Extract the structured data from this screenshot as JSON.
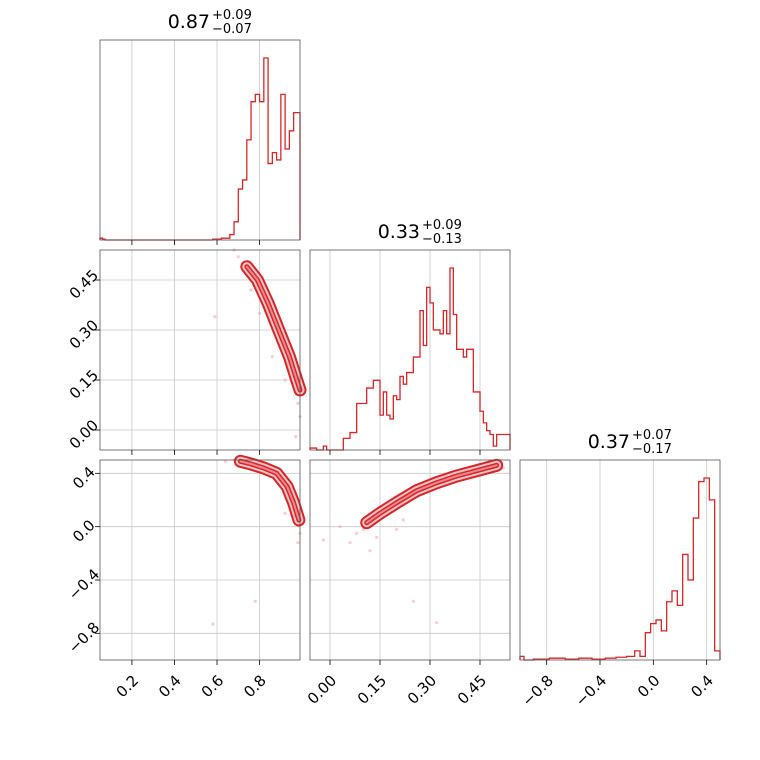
{
  "colors": {
    "accent": "#d62728",
    "contour_fill_light": "#f6c4c7",
    "contour_fill_mid": "#ea8a90",
    "scatter": "#f0a0a8",
    "grid": "#c8c8c8"
  },
  "chart_data": {
    "type": "corner",
    "grid": true,
    "parameters": [
      {
        "title_main": "0.87",
        "title_plus": "+0.09",
        "title_minus": "−0.07",
        "range": [
          0.05,
          0.99
        ],
        "ticks": [
          "0.2",
          "0.4",
          "0.6",
          "0.8"
        ],
        "tick_values": [
          0.2,
          0.4,
          0.6,
          0.8
        ],
        "hist": {
          "edges": [
            0.05,
            0.062,
            0.074,
            0.58,
            0.62,
            0.66,
            0.68,
            0.7,
            0.72,
            0.74,
            0.76,
            0.78,
            0.8,
            0.82,
            0.84,
            0.86,
            0.88,
            0.9,
            0.92,
            0.94,
            0.96,
            0.98,
            0.99
          ],
          "counts": [
            0.01,
            0.005,
            0,
            0.005,
            0.01,
            0.03,
            0.1,
            0.28,
            0.33,
            0.55,
            0.76,
            0.8,
            0.76,
            1.0,
            0.42,
            0.48,
            0.44,
            0.8,
            0.5,
            0.6,
            0.7,
            0.7
          ]
        }
      },
      {
        "title_main": "0.33",
        "title_plus": "+0.09",
        "title_minus": "−0.13",
        "range": [
          -0.06,
          0.54
        ],
        "ticks": [
          "0.00",
          "0.15",
          "0.30",
          "0.45"
        ],
        "tick_values": [
          0.0,
          0.15,
          0.3,
          0.45
        ],
        "hist": {
          "edges": [
            -0.06,
            -0.04,
            -0.02,
            -0.01,
            0.0,
            0.02,
            0.04,
            0.06,
            0.08,
            0.1,
            0.11,
            0.12,
            0.13,
            0.14,
            0.15,
            0.16,
            0.17,
            0.18,
            0.19,
            0.2,
            0.21,
            0.22,
            0.23,
            0.24,
            0.25,
            0.26,
            0.27,
            0.28,
            0.29,
            0.3,
            0.31,
            0.32,
            0.33,
            0.34,
            0.35,
            0.36,
            0.37,
            0.38,
            0.39,
            0.4,
            0.41,
            0.42,
            0.43,
            0.44,
            0.45,
            0.46,
            0.47,
            0.48,
            0.49,
            0.5,
            0.52,
            0.54
          ],
          "counts": [
            0.01,
            0.0,
            0.02,
            0.0,
            0.0,
            0.0,
            0.06,
            0.09,
            0.24,
            0.24,
            0.32,
            0.32,
            0.36,
            0.36,
            0.18,
            0.3,
            0.18,
            0.16,
            0.28,
            0.26,
            0.38,
            0.34,
            0.4,
            0.4,
            0.48,
            0.48,
            0.72,
            0.54,
            0.84,
            0.76,
            0.62,
            0.62,
            0.6,
            0.72,
            0.6,
            0.94,
            0.7,
            0.52,
            0.52,
            0.48,
            0.52,
            0.52,
            0.3,
            0.3,
            0.2,
            0.14,
            0.1,
            0.08,
            0.02,
            0.08,
            0.08
          ]
        }
      },
      {
        "title_main": "0.37",
        "title_plus": "+0.07",
        "title_minus": "−0.17",
        "range": [
          -1.0,
          0.5
        ],
        "ticks": [
          "−0.8",
          "−0.4",
          "0.0",
          "0.4"
        ],
        "tick_values": [
          -0.8,
          -0.4,
          0.0,
          0.4
        ],
        "hist": {
          "edges": [
            -1.0,
            -0.97,
            -0.9,
            -0.78,
            -0.66,
            -0.56,
            -0.46,
            -0.36,
            -0.28,
            -0.2,
            -0.14,
            -0.1,
            -0.06,
            -0.02,
            0.02,
            0.06,
            0.1,
            0.14,
            0.18,
            0.22,
            0.26,
            0.3,
            0.34,
            0.38,
            0.42,
            0.46,
            0.5
          ],
          "counts": [
            0.02,
            0.0,
            0.005,
            0.01,
            0.005,
            0.01,
            0.005,
            0.01,
            0.015,
            0.02,
            0.05,
            0.02,
            0.15,
            0.2,
            0.22,
            0.16,
            0.32,
            0.38,
            0.3,
            0.58,
            0.44,
            0.78,
            0.98,
            1.0,
            0.88,
            0.05
          ]
        }
      }
    ],
    "pairs": [
      {
        "row": 1,
        "col": 0,
        "contour": [
          [
            0.74,
            0.49
          ],
          [
            0.79,
            0.45
          ],
          [
            0.84,
            0.38
          ],
          [
            0.89,
            0.3
          ],
          [
            0.94,
            0.22
          ],
          [
            0.97,
            0.16
          ],
          [
            0.99,
            0.12
          ]
        ],
        "scatter": [
          [
            0.68,
            0.54
          ],
          [
            0.7,
            0.52
          ],
          [
            0.72,
            0.5
          ],
          [
            0.76,
            0.42
          ],
          [
            0.8,
            0.35
          ],
          [
            0.59,
            0.34
          ],
          [
            0.86,
            0.22
          ],
          [
            0.92,
            0.15
          ],
          [
            0.98,
            0.08
          ],
          [
            0.99,
            0.04
          ],
          [
            0.97,
            -0.02
          ]
        ]
      },
      {
        "row": 2,
        "col": 0,
        "contour": [
          [
            0.71,
            0.49
          ],
          [
            0.76,
            0.47
          ],
          [
            0.82,
            0.44
          ],
          [
            0.88,
            0.4
          ],
          [
            0.93,
            0.3
          ],
          [
            0.96,
            0.18
          ],
          [
            0.985,
            0.05
          ]
        ],
        "scatter": [
          [
            0.64,
            0.49
          ],
          [
            0.68,
            0.5
          ],
          [
            0.74,
            0.52
          ],
          [
            0.99,
            -0.05
          ],
          [
            0.98,
            -0.12
          ],
          [
            0.78,
            -0.56
          ],
          [
            0.58,
            -0.73
          ],
          [
            0.92,
            0.1
          ]
        ]
      },
      {
        "row": 2,
        "col": 1,
        "contour": [
          [
            0.11,
            0.03
          ],
          [
            0.15,
            0.1
          ],
          [
            0.2,
            0.18
          ],
          [
            0.26,
            0.27
          ],
          [
            0.32,
            0.33
          ],
          [
            0.38,
            0.38
          ],
          [
            0.44,
            0.42
          ],
          [
            0.5,
            0.46
          ]
        ],
        "scatter": [
          [
            0.03,
            0.0
          ],
          [
            -0.02,
            -0.1
          ],
          [
            0.08,
            -0.05
          ],
          [
            0.06,
            -0.12
          ],
          [
            0.1,
            -0.02
          ],
          [
            0.12,
            -0.18
          ],
          [
            0.14,
            -0.08
          ],
          [
            0.2,
            -0.02
          ],
          [
            0.22,
            0.05
          ],
          [
            0.25,
            -0.56
          ],
          [
            0.32,
            -0.72
          ],
          [
            0.46,
            0.46
          ],
          [
            0.52,
            0.44
          ]
        ]
      }
    ]
  }
}
